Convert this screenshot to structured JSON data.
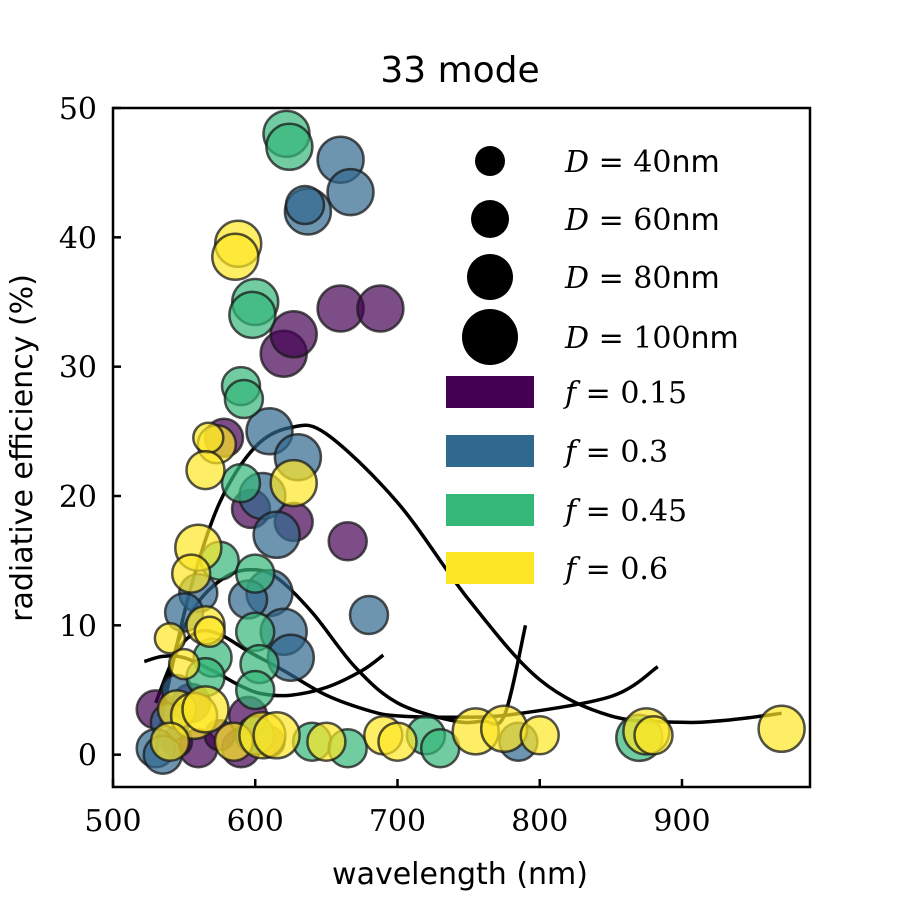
{
  "chart_data": {
    "type": "scatter",
    "title": "33 mode",
    "xlabel": "wavelength (nm)",
    "ylabel": "radiative efficiency (%)",
    "xlim": [
      500,
      990
    ],
    "ylim": [
      -2.5,
      50
    ],
    "xticks": [
      500,
      600,
      700,
      800,
      900
    ],
    "yticks": [
      0,
      10,
      20,
      30,
      40,
      50
    ],
    "grid": false,
    "legend_position": "upper-right",
    "size_legend": [
      {
        "D": "40",
        "label_var": "D",
        "label_eq": " = 40",
        "label_unit": "nm"
      },
      {
        "D": "60",
        "label_var": "D",
        "label_eq": " = 60",
        "label_unit": "nm"
      },
      {
        "D": "80",
        "label_var": "D",
        "label_eq": " = 80",
        "label_unit": "nm"
      },
      {
        "D": "100",
        "label_var": "D",
        "label_eq": " = 100",
        "label_unit": "nm"
      }
    ],
    "color_legend": [
      {
        "f": 0.15,
        "label_var": "f",
        "label_eq": " = 0.15",
        "color": "#440154"
      },
      {
        "f": 0.3,
        "label_var": "f",
        "label_eq": " = 0.3",
        "color": "#31688e"
      },
      {
        "f": 0.45,
        "label_var": "f",
        "label_eq": " = 0.45",
        "color": "#35b779"
      },
      {
        "f": 0.6,
        "label_var": "f",
        "label_eq": " = 0.6",
        "color": "#fde725"
      }
    ],
    "series": [
      {
        "f": 0.15,
        "color": "#440154",
        "points": [
          {
            "x": 620,
            "y": 31.0,
            "D": 80
          },
          {
            "x": 627,
            "y": 32.5,
            "D": 80
          },
          {
            "x": 660,
            "y": 34.5,
            "D": 80
          },
          {
            "x": 688,
            "y": 34.5,
            "D": 80
          },
          {
            "x": 597,
            "y": 19.0,
            "D": 60
          },
          {
            "x": 627,
            "y": 18.0,
            "D": 60
          },
          {
            "x": 665,
            "y": 16.5,
            "D": 60
          },
          {
            "x": 578,
            "y": 24.5,
            "D": 60
          },
          {
            "x": 555,
            "y": 4.0,
            "D": 60
          },
          {
            "x": 595,
            "y": 3.0,
            "D": 60
          },
          {
            "x": 530,
            "y": 3.5,
            "D": 60
          },
          {
            "x": 560,
            "y": 0.5,
            "D": 60
          },
          {
            "x": 590,
            "y": 0.5,
            "D": 60
          },
          {
            "x": 545,
            "y": 1.0,
            "D": 40
          },
          {
            "x": 575,
            "y": 1.5,
            "D": 40
          },
          {
            "x": 610,
            "y": 1.0,
            "D": 40
          }
        ]
      },
      {
        "f": 0.3,
        "color": "#31688e",
        "points": [
          {
            "x": 660,
            "y": 46.0,
            "D": 80
          },
          {
            "x": 667,
            "y": 43.5,
            "D": 80
          },
          {
            "x": 637,
            "y": 42.0,
            "D": 80
          },
          {
            "x": 635,
            "y": 42.5,
            "D": 60
          },
          {
            "x": 610,
            "y": 25.0,
            "D": 80
          },
          {
            "x": 630,
            "y": 23.0,
            "D": 80
          },
          {
            "x": 605,
            "y": 20.0,
            "D": 80
          },
          {
            "x": 615,
            "y": 17.0,
            "D": 80
          },
          {
            "x": 610,
            "y": 12.5,
            "D": 80
          },
          {
            "x": 620,
            "y": 9.5,
            "D": 80
          },
          {
            "x": 625,
            "y": 7.5,
            "D": 80
          },
          {
            "x": 595,
            "y": 12.0,
            "D": 60
          },
          {
            "x": 560,
            "y": 12.5,
            "D": 60
          },
          {
            "x": 550,
            "y": 11.0,
            "D": 60
          },
          {
            "x": 680,
            "y": 10.8,
            "D": 60
          },
          {
            "x": 540,
            "y": 2.5,
            "D": 60
          },
          {
            "x": 530,
            "y": 0.5,
            "D": 60
          },
          {
            "x": 535,
            "y": 0.0,
            "D": 60
          },
          {
            "x": 785,
            "y": 1.0,
            "D": 60
          },
          {
            "x": 545,
            "y": 5.0,
            "D": 40
          }
        ]
      },
      {
        "f": 0.45,
        "color": "#35b779",
        "points": [
          {
            "x": 622,
            "y": 48.0,
            "D": 80
          },
          {
            "x": 624,
            "y": 47.0,
            "D": 80
          },
          {
            "x": 600,
            "y": 35.0,
            "D": 80
          },
          {
            "x": 598,
            "y": 34.0,
            "D": 80
          },
          {
            "x": 590,
            "y": 28.5,
            "D": 60
          },
          {
            "x": 592,
            "y": 27.5,
            "D": 60
          },
          {
            "x": 590,
            "y": 21.0,
            "D": 60
          },
          {
            "x": 575,
            "y": 15.0,
            "D": 60
          },
          {
            "x": 600,
            "y": 14.0,
            "D": 60
          },
          {
            "x": 600,
            "y": 9.5,
            "D": 60
          },
          {
            "x": 603,
            "y": 7.0,
            "D": 60
          },
          {
            "x": 570,
            "y": 7.5,
            "D": 60
          },
          {
            "x": 600,
            "y": 5.0,
            "D": 60
          },
          {
            "x": 565,
            "y": 6.0,
            "D": 60
          },
          {
            "x": 600,
            "y": 1.5,
            "D": 60
          },
          {
            "x": 640,
            "y": 1.0,
            "D": 60
          },
          {
            "x": 665,
            "y": 0.5,
            "D": 60
          },
          {
            "x": 720,
            "y": 1.5,
            "D": 60
          },
          {
            "x": 730,
            "y": 0.5,
            "D": 60
          },
          {
            "x": 870,
            "y": 1.3,
            "D": 80
          }
        ]
      },
      {
        "f": 0.6,
        "color": "#fde725",
        "points": [
          {
            "x": 588,
            "y": 39.5,
            "D": 80
          },
          {
            "x": 586,
            "y": 38.5,
            "D": 80
          },
          {
            "x": 573,
            "y": 24.0,
            "D": 60
          },
          {
            "x": 567,
            "y": 24.5,
            "D": 40
          },
          {
            "x": 565,
            "y": 22.0,
            "D": 60
          },
          {
            "x": 627,
            "y": 21.0,
            "D": 80
          },
          {
            "x": 560,
            "y": 16.0,
            "D": 80
          },
          {
            "x": 555,
            "y": 14.0,
            "D": 60
          },
          {
            "x": 565,
            "y": 10.0,
            "D": 60
          },
          {
            "x": 568,
            "y": 9.5,
            "D": 40
          },
          {
            "x": 540,
            "y": 9.0,
            "D": 40
          },
          {
            "x": 550,
            "y": 7.0,
            "D": 40
          },
          {
            "x": 545,
            "y": 3.5,
            "D": 60
          },
          {
            "x": 557,
            "y": 3.0,
            "D": 80
          },
          {
            "x": 565,
            "y": 3.5,
            "D": 80
          },
          {
            "x": 540,
            "y": 1.0,
            "D": 60
          },
          {
            "x": 585,
            "y": 1.0,
            "D": 60
          },
          {
            "x": 605,
            "y": 1.5,
            "D": 80
          },
          {
            "x": 615,
            "y": 1.5,
            "D": 80
          },
          {
            "x": 650,
            "y": 1.0,
            "D": 60
          },
          {
            "x": 690,
            "y": 1.5,
            "D": 60
          },
          {
            "x": 700,
            "y": 1.0,
            "D": 60
          },
          {
            "x": 755,
            "y": 1.8,
            "D": 80
          },
          {
            "x": 775,
            "y": 2.0,
            "D": 80
          },
          {
            "x": 800,
            "y": 1.5,
            "D": 60
          },
          {
            "x": 875,
            "y": 1.8,
            "D": 80
          },
          {
            "x": 880,
            "y": 1.5,
            "D": 60
          },
          {
            "x": 970,
            "y": 2.0,
            "D": 80
          }
        ]
      }
    ],
    "fit_curves": [
      {
        "x": [
          530,
          540,
          555,
          575,
          600,
          625,
          650,
          700,
          750,
          800,
          850,
          900,
          925,
          950,
          970
        ],
        "y": [
          0.2,
          6.0,
          13.0,
          19.5,
          23.8,
          25.3,
          24.8,
          19.5,
          12.0,
          5.8,
          3.0,
          2.5,
          2.6,
          2.9,
          3.2
        ]
      },
      {
        "x": [
          532,
          545,
          560,
          580,
          598,
          615,
          640,
          670,
          700,
          740,
          760,
          775,
          790
        ],
        "y": [
          3.0,
          8.5,
          11.8,
          13.8,
          14.3,
          13.7,
          11.0,
          6.8,
          4.0,
          2.6,
          2.6,
          3.0,
          10.0
        ]
      },
      {
        "x": [
          530,
          545,
          560,
          575,
          595,
          620,
          650,
          680,
          700,
          740,
          780,
          850,
          883
        ],
        "y": [
          4.0,
          8.0,
          9.5,
          9.3,
          8.0,
          6.5,
          4.6,
          3.4,
          3.0,
          2.9,
          3.1,
          4.5,
          6.8
        ]
      },
      {
        "x": [
          522,
          535,
          550,
          570,
          590,
          605,
          625,
          650,
          675,
          690
        ],
        "y": [
          7.2,
          7.6,
          7.5,
          6.5,
          5.3,
          4.7,
          4.6,
          5.2,
          6.5,
          7.7
        ]
      }
    ]
  }
}
